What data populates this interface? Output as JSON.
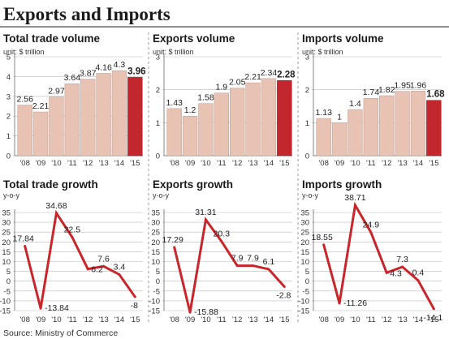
{
  "title": "Exports and Imports",
  "source": "Source: Ministry of Commerce",
  "colors": {
    "bar": "#e8c3b4",
    "bar_highlight": "#c1272d",
    "line": "#c9262c",
    "grid": "#bbbbbb",
    "divider": "#999999"
  },
  "chart_data": [
    {
      "type": "bar",
      "title": "Total trade volume",
      "unit": "unit: $ trillion",
      "categories": [
        "'08",
        "'09",
        "'10",
        "'11",
        "'12",
        "'13",
        "'14",
        "'15"
      ],
      "values": [
        2.56,
        2.21,
        2.97,
        3.64,
        3.87,
        4.16,
        4.3,
        3.96
      ],
      "highlight_last": true,
      "ylim": [
        0,
        5
      ],
      "yticks": [
        0,
        1,
        2,
        3,
        4,
        5
      ]
    },
    {
      "type": "bar",
      "title": "Exports volume",
      "unit": "unit: $ trillion",
      "categories": [
        "'08",
        "'09",
        "'10",
        "'11",
        "'12",
        "'13",
        "'14",
        "'15"
      ],
      "values": [
        1.43,
        1.2,
        1.58,
        1.9,
        2.05,
        2.21,
        2.34,
        2.28
      ],
      "highlight_last": true,
      "ylim": [
        0,
        3
      ],
      "yticks": [
        0,
        1,
        2,
        3
      ]
    },
    {
      "type": "bar",
      "title": "Imports volume",
      "unit": "unit: $ trillion",
      "categories": [
        "'08",
        "'09",
        "'10",
        "'11",
        "'12",
        "'13",
        "'14",
        "'15"
      ],
      "values": [
        1.13,
        1,
        1.4,
        1.74,
        1.82,
        1.95,
        1.96,
        1.68
      ],
      "highlight_last": true,
      "ylim": [
        0,
        3
      ],
      "yticks": [
        0,
        1,
        2,
        3
      ]
    },
    {
      "type": "line",
      "title": "Total trade growth",
      "unit": "y-o-y",
      "categories": [
        "'08",
        "'09",
        "'10",
        "'11",
        "'12",
        "'13",
        "'14",
        "'15"
      ],
      "values": [
        17.84,
        -13.84,
        34.68,
        22.5,
        6.2,
        7.6,
        3.4,
        -8
      ],
      "labels": [
        "17.84",
        "-13.84",
        "34.68",
        "22.5",
        "6.2",
        "7.6",
        "3.4",
        "-8"
      ],
      "ylim": [
        -15,
        35
      ],
      "yticks": [
        -15,
        -10,
        -5,
        0,
        5,
        10,
        15,
        20,
        25,
        30,
        35
      ]
    },
    {
      "type": "line",
      "title": "Exports growth",
      "unit": "y-o-y",
      "categories": [
        "'08",
        "'09",
        "'10",
        "'11",
        "'12",
        "'13",
        "'14",
        "'15"
      ],
      "values": [
        17.29,
        -15.88,
        31.31,
        20.3,
        7.9,
        7.9,
        6.1,
        -2.8
      ],
      "labels": [
        "17.29",
        "-15.88",
        "31.31",
        "20.3",
        "7.9",
        "7.9",
        "6.1",
        "-2.8"
      ],
      "ylim": [
        -15,
        35
      ],
      "yticks": [
        -15,
        -10,
        -5,
        0,
        5,
        10,
        15,
        20,
        25,
        30,
        35
      ]
    },
    {
      "type": "line",
      "title": "Imports growth",
      "unit": "y-o-y",
      "categories": [
        "'08",
        "'09",
        "'10",
        "'11",
        "'12",
        "'13",
        "'14",
        "'15"
      ],
      "values": [
        18.55,
        -11.26,
        38.71,
        24.9,
        4.3,
        7.3,
        0.4,
        -14.1
      ],
      "labels": [
        "18.55",
        "-11.26",
        "38.71",
        "24.9",
        "4.3",
        "7.3",
        "0.4",
        "-14.1"
      ],
      "ylim": [
        -15,
        35
      ],
      "yticks": [
        -15,
        -10,
        -5,
        0,
        5,
        10,
        15,
        20,
        25,
        30,
        35
      ]
    }
  ]
}
